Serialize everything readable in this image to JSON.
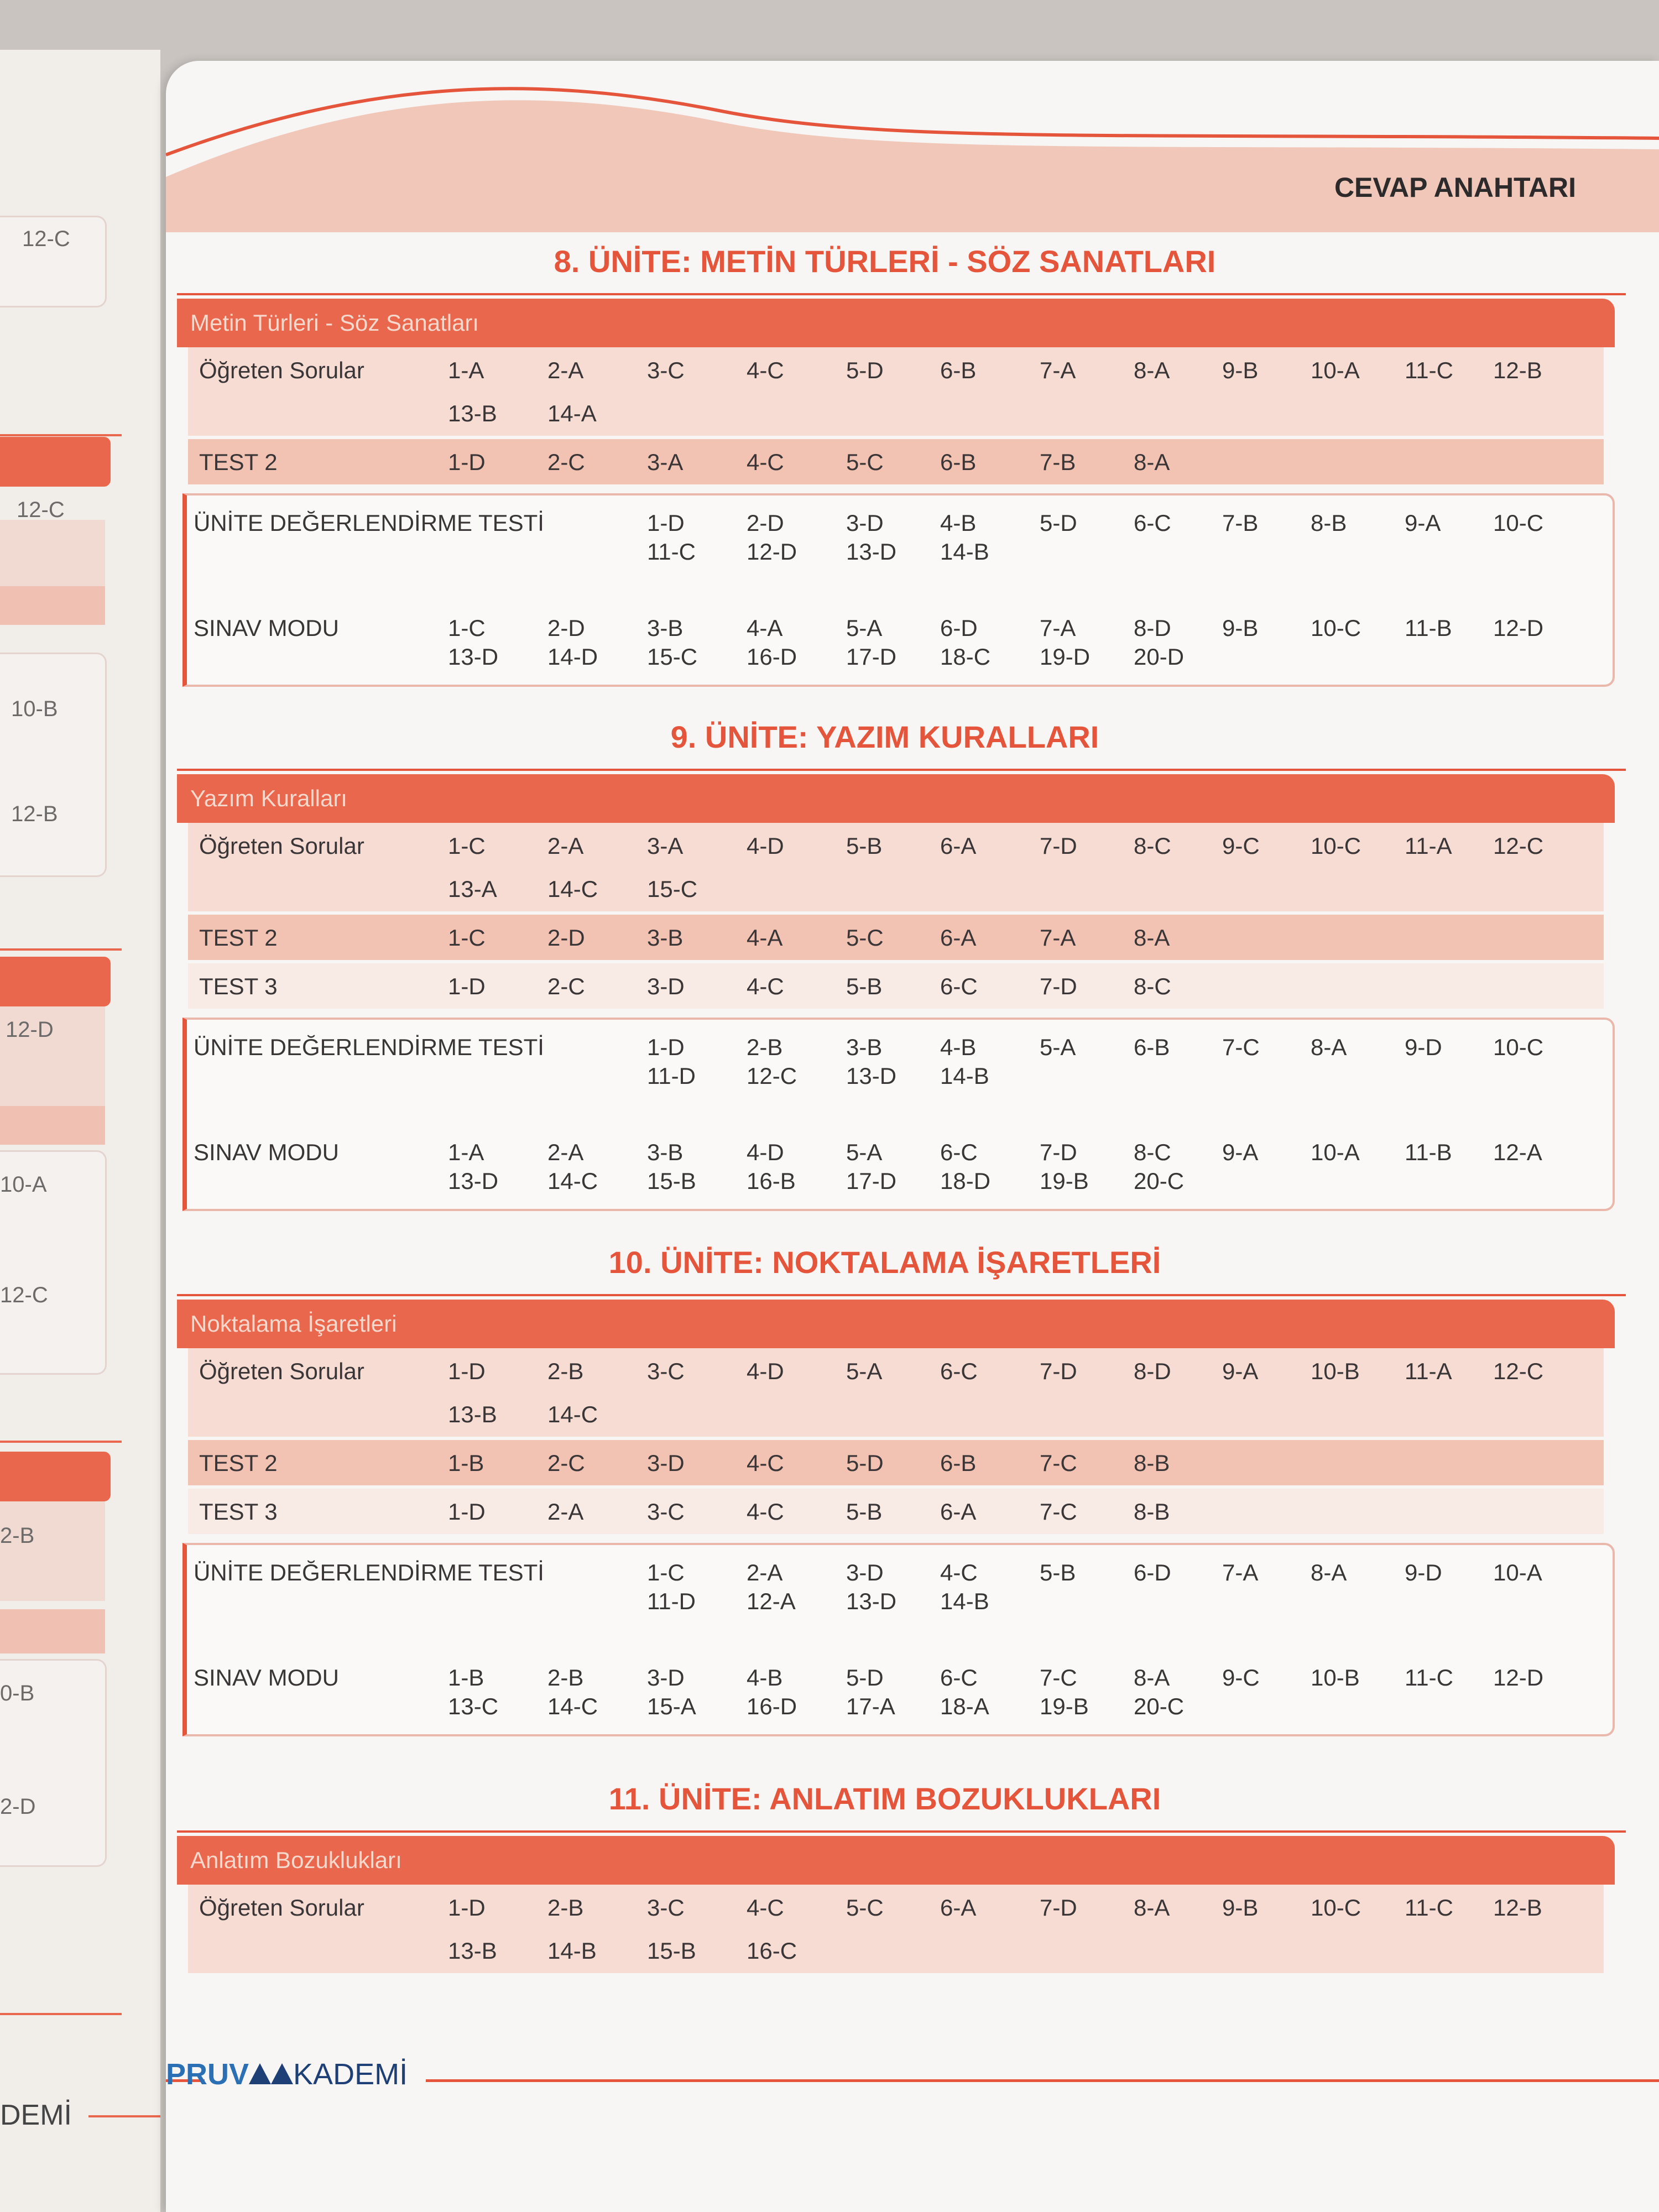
{
  "left_page": {
    "fragments": [
      "12-C",
      "12-C",
      "10-B",
      "12-B",
      "12-D",
      "10-A",
      "12-C",
      "2-B",
      "0-B",
      "2-D",
      "DEMİ"
    ]
  },
  "header": {
    "title": "CEVAP ANAHTARI"
  },
  "units": [
    {
      "title": "8. ÜNİTE: METİN TÜRLERİ - SÖZ SANATLARI",
      "band": "Metin Türleri - Söz Sanatları",
      "rows": [
        {
          "label": "Öğreten Sorular",
          "line1": [
            "1-A",
            "2-A",
            "3-C",
            "4-C",
            "5-D",
            "6-B",
            "7-A",
            "8-A",
            "9-B",
            "10-A",
            "11-C",
            "12-B"
          ],
          "line2": [
            "13-B",
            "14-A"
          ]
        },
        {
          "label": "TEST 2",
          "line1": [
            "1-D",
            "2-C",
            "3-A",
            "4-C",
            "5-C",
            "6-B",
            "7-B",
            "8-A"
          ]
        }
      ],
      "boxes": [
        {
          "label": "ÜNİTE DEĞERLENDİRME TESTİ",
          "pairs": [
            [
              "1-D",
              "11-C"
            ],
            [
              "2-D",
              "12-D"
            ],
            [
              "3-D",
              "13-D"
            ],
            [
              "4-B",
              "14-B"
            ]
          ],
          "singles": [
            "5-D",
            "6-C",
            "7-B",
            "8-B",
            "9-A",
            "10-C"
          ]
        },
        {
          "label": "SINAV MODU",
          "pairs": [
            [
              "1-C",
              "13-D"
            ],
            [
              "2-D",
              "14-D"
            ],
            [
              "3-B",
              "15-C"
            ],
            [
              "4-A",
              "16-D"
            ],
            [
              "5-A",
              "17-D"
            ],
            [
              "6-D",
              "18-C"
            ],
            [
              "7-A",
              "19-D"
            ],
            [
              "8-D",
              "20-D"
            ]
          ],
          "singles": [
            "9-B",
            "10-C",
            "11-B",
            "12-D"
          ]
        }
      ]
    },
    {
      "title": "9. ÜNİTE: YAZIM KURALLARI",
      "band": "Yazım Kuralları",
      "rows": [
        {
          "label": "Öğreten Sorular",
          "line1": [
            "1-C",
            "2-A",
            "3-A",
            "4-D",
            "5-B",
            "6-A",
            "7-D",
            "8-C",
            "9-C",
            "10-C",
            "11-A",
            "12-C"
          ],
          "line2": [
            "13-A",
            "14-C",
            "15-C"
          ]
        },
        {
          "label": "TEST 2",
          "line1": [
            "1-C",
            "2-D",
            "3-B",
            "4-A",
            "5-C",
            "6-A",
            "7-A",
            "8-A"
          ]
        },
        {
          "label": "TEST 3",
          "line1": [
            "1-D",
            "2-C",
            "3-D",
            "4-C",
            "5-B",
            "6-C",
            "7-D",
            "8-C"
          ]
        }
      ],
      "boxes": [
        {
          "label": "ÜNİTE DEĞERLENDİRME TESTİ",
          "pairs": [
            [
              "1-D",
              "11-D"
            ],
            [
              "2-B",
              "12-C"
            ],
            [
              "3-B",
              "13-D"
            ],
            [
              "4-B",
              "14-B"
            ]
          ],
          "singles": [
            "5-A",
            "6-B",
            "7-C",
            "8-A",
            "9-D",
            "10-C"
          ]
        },
        {
          "label": "SINAV MODU",
          "pairs": [
            [
              "1-A",
              "13-D"
            ],
            [
              "2-A",
              "14-C"
            ],
            [
              "3-B",
              "15-B"
            ],
            [
              "4-D",
              "16-B"
            ],
            [
              "5-A",
              "17-D"
            ],
            [
              "6-C",
              "18-D"
            ],
            [
              "7-D",
              "19-B"
            ],
            [
              "8-C",
              "20-C"
            ]
          ],
          "singles": [
            "9-A",
            "10-A",
            "11-B",
            "12-A"
          ]
        }
      ]
    },
    {
      "title": "10. ÜNİTE: NOKTALAMA İŞARETLERİ",
      "band": "Noktalama İşaretleri",
      "rows": [
        {
          "label": "Öğreten Sorular",
          "line1": [
            "1-D",
            "2-B",
            "3-C",
            "4-D",
            "5-A",
            "6-C",
            "7-D",
            "8-D",
            "9-A",
            "10-B",
            "11-A",
            "12-C"
          ],
          "line2": [
            "13-B",
            "14-C"
          ]
        },
        {
          "label": "TEST 2",
          "line1": [
            "1-B",
            "2-C",
            "3-D",
            "4-C",
            "5-D",
            "6-B",
            "7-C",
            "8-B"
          ]
        },
        {
          "label": "TEST 3",
          "line1": [
            "1-D",
            "2-A",
            "3-C",
            "4-C",
            "5-B",
            "6-A",
            "7-C",
            "8-B"
          ]
        }
      ],
      "boxes": [
        {
          "label": "ÜNİTE DEĞERLENDİRME TESTİ",
          "pairs": [
            [
              "1-C",
              "11-D"
            ],
            [
              "2-A",
              "12-A"
            ],
            [
              "3-D",
              "13-D"
            ],
            [
              "4-C",
              "14-B"
            ]
          ],
          "singles": [
            "5-B",
            "6-D",
            "7-A",
            "8-A",
            "9-D",
            "10-A"
          ]
        },
        {
          "label": "SINAV MODU",
          "pairs": [
            [
              "1-B",
              "13-C"
            ],
            [
              "2-B",
              "14-C"
            ],
            [
              "3-D",
              "15-A"
            ],
            [
              "4-B",
              "16-D"
            ],
            [
              "5-D",
              "17-A"
            ],
            [
              "6-C",
              "18-A"
            ],
            [
              "7-C",
              "19-B"
            ],
            [
              "8-A",
              "20-C"
            ]
          ],
          "singles": [
            "9-C",
            "10-B",
            "11-C",
            "12-D"
          ]
        }
      ]
    },
    {
      "title": "11. ÜNİTE: ANLATIM BOZUKLUKLARI",
      "band": "Anlatım Bozuklukları",
      "rows": [
        {
          "label": "Öğreten Sorular",
          "line1": [
            "1-D",
            "2-B",
            "3-C",
            "4-C",
            "5-C",
            "6-A",
            "7-D",
            "8-A",
            "9-B",
            "10-C",
            "11-C",
            "12-B"
          ],
          "line2": [
            "13-B",
            "14-B",
            "15-B",
            "16-C"
          ]
        }
      ],
      "boxes": []
    }
  ],
  "footer": {
    "brand_a": "PRUV",
    "brand_b": "KADEMİ"
  }
}
